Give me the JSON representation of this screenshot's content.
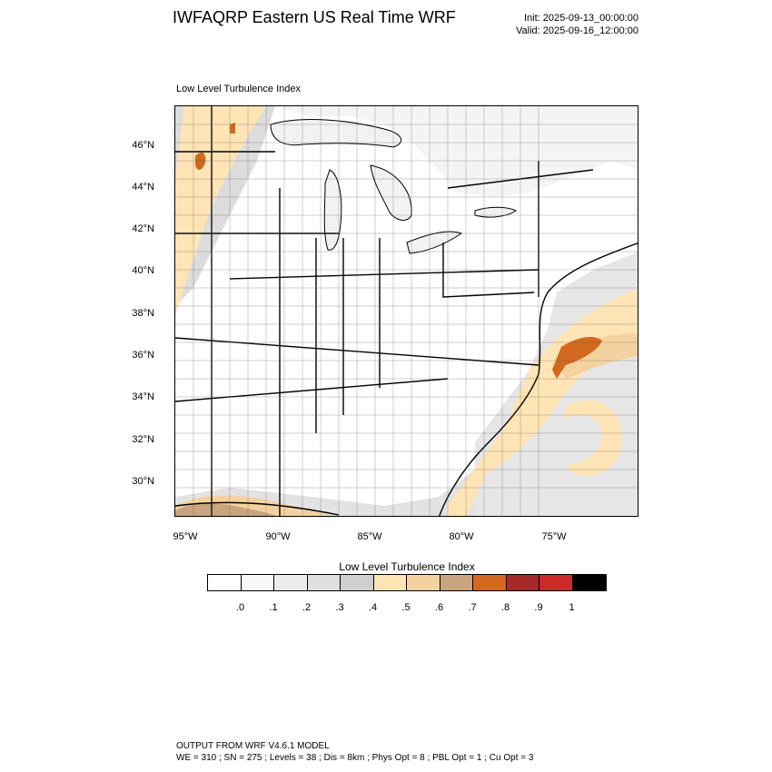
{
  "header": {
    "title": "IWFAQRP Eastern US Real Time WRF",
    "init": "Init: 2025-09-13_00:00:00",
    "valid": "Valid: 2025-09-16_12:00:00"
  },
  "map": {
    "subtitle": "Low Level Turbulence Index",
    "lat_labels": [
      "46°N",
      "44°N",
      "42°N",
      "40°N",
      "38°N",
      "36°N",
      "34°N",
      "32°N",
      "30°N"
    ],
    "lon_labels": [
      "95°W",
      "90°W",
      "85°W",
      "80°W",
      "75°W"
    ],
    "colors": {
      "land": "#ffffff",
      "lakes": "#f2f2f2",
      "ocean_light": "#e6e6e6",
      "border": "#000000"
    }
  },
  "colorbar": {
    "title": "Low Level Turbulence Index",
    "colors": [
      "#ffffff",
      "#f7f7f7",
      "#ececec",
      "#dfdfdf",
      "#d0d0d0",
      "#ffe4b5",
      "#f4d2a0",
      "#c8a57f",
      "#d2691e",
      "#a52a2a",
      "#cc2929",
      "#000000"
    ],
    "ticks": [
      ".0",
      ".1",
      ".2",
      ".3",
      ".4",
      ".5",
      ".6",
      ".7",
      ".8",
      ".9",
      "1"
    ]
  },
  "footer": {
    "line1": "OUTPUT FROM WRF V4.6.1 MODEL",
    "line2": "WE = 310 ; SN = 275 ; Levels = 38 ; Dis = 8km ; Phys Opt = 8 ; PBL Opt = 1 ; Cu Opt = 3"
  }
}
